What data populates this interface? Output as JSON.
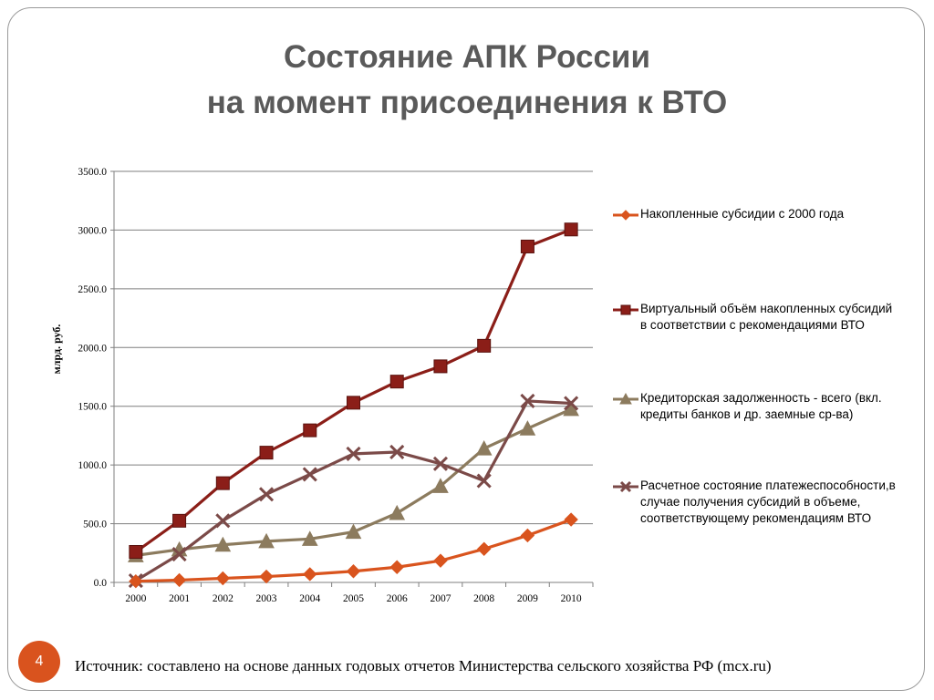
{
  "slide": {
    "title_line1": "Состояние АПК России",
    "title_line2": "на момент присоединения к ВТО",
    "page_number": "4",
    "source": "Источник: составлено на основе данных годовых отчетов Министерства сельского хозяйства РФ (mcx.ru)"
  },
  "chart_data": {
    "type": "line",
    "title": "",
    "xlabel": "",
    "ylabel": "млрд. руб.",
    "ylim": [
      0,
      3500
    ],
    "yticks": [
      0,
      500,
      1000,
      1500,
      2000,
      2500,
      3000,
      3500
    ],
    "ytick_labels": [
      "0.0",
      "500.0",
      "1000.0",
      "1500.0",
      "2000.0",
      "2500.0",
      "3000.0",
      "3500.0"
    ],
    "grid": "horizontal",
    "legend_position": "right",
    "categories": [
      "2000",
      "2001",
      "2002",
      "2003",
      "2004",
      "2005",
      "2006",
      "2007",
      "2008",
      "2009",
      "2010"
    ],
    "series": [
      {
        "name": "Накопленные субсидии с 2000 года",
        "color": "#d9541e",
        "marker": "diamond",
        "values": [
          10,
          20,
          35,
          50,
          70,
          95,
          130,
          185,
          285,
          400,
          535
        ]
      },
      {
        "name": "Виртуальный объём накопленных субсидий в соответствии с рекомендациями ВТО",
        "color": "#8b1e18",
        "marker": "square",
        "values": [
          260,
          525,
          845,
          1105,
          1295,
          1530,
          1710,
          1840,
          2015,
          2860,
          3005
        ]
      },
      {
        "name": "Кредиторская задолженность - всего (вкл. кредиты банков и др. заемные ср-ва)",
        "color": "#8c7b5e",
        "marker": "triangle",
        "values": [
          230,
          280,
          320,
          350,
          370,
          430,
          590,
          820,
          1140,
          1310,
          1475
        ]
      },
      {
        "name": "Расчетное состояние платежеспособности,в случае получения субсидий в объеме, соответствующему рекомендациям ВТО",
        "color": "#7b4a48",
        "marker": "x",
        "values": [
          15,
          240,
          525,
          750,
          920,
          1095,
          1110,
          1010,
          865,
          1545,
          1525
        ]
      }
    ]
  }
}
